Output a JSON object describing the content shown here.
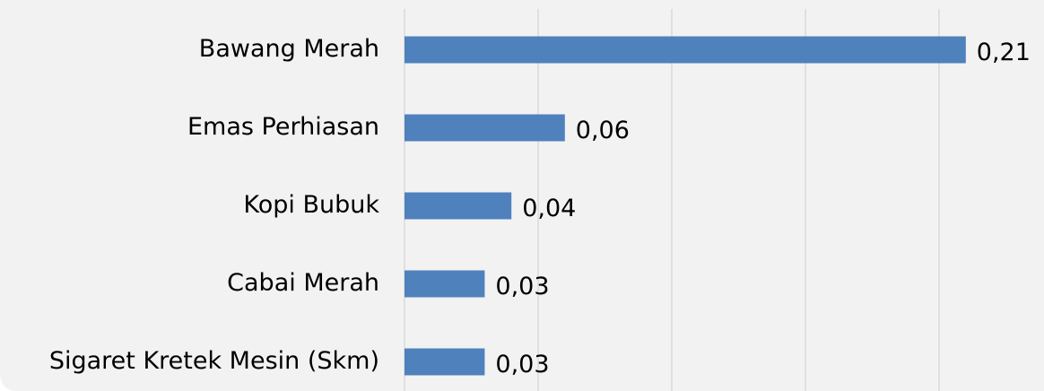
{
  "chart_data": {
    "type": "barh",
    "categories": [
      "Bawang Merah",
      "Emas Perhiasan",
      "Kopi Bubuk",
      "Cabai Merah",
      "Sigaret Kretek Mesin (Skm)"
    ],
    "values": [
      0.21,
      0.06,
      0.04,
      0.03,
      0.03
    ],
    "value_labels": [
      "0,21",
      "0,06",
      "0,04",
      "0,03",
      "0,03"
    ],
    "color": "#4f81bd",
    "xlim": [
      0,
      0.2
    ],
    "xticks": [
      0,
      0.05,
      0.1,
      0.15,
      0.2
    ],
    "grid": true
  }
}
